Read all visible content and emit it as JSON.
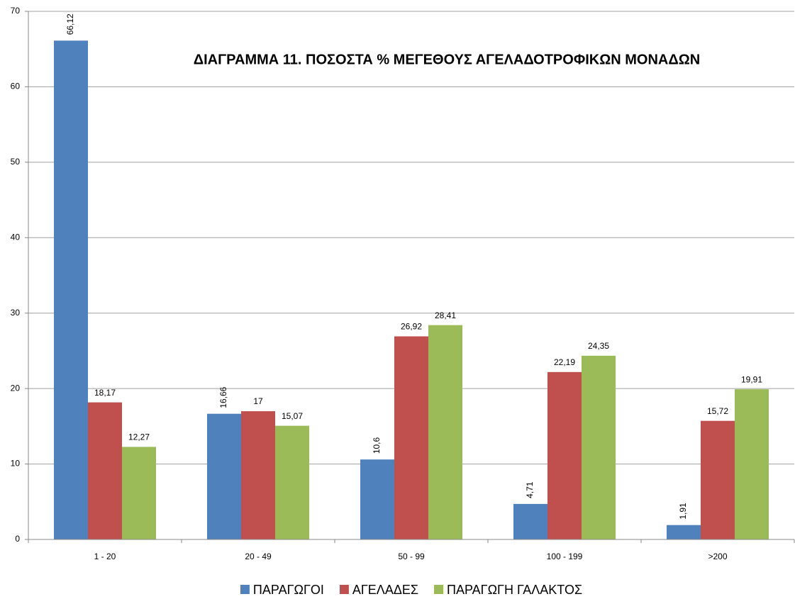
{
  "chart_data": {
    "type": "bar",
    "title": "ΔΙΑΓΡΑΜΜΑ 11. ΠΟΣΟΣΤΑ %  ΜΕΓΕΘΟΥΣ ΑΓΕΛΑΔΟΤΡΟΦΙΚΩΝ ΜΟΝΑΔΩΝ",
    "categories": [
      "1 - 20",
      "20 - 49",
      "50 - 99",
      "100 - 199",
      ">200"
    ],
    "series": [
      {
        "name": "ΠΑΡΑΓΩΓΟΙ",
        "color": "#4f81bd",
        "values": [
          66.12,
          16.66,
          10.6,
          4.71,
          1.91
        ],
        "value_labels": [
          "66,12",
          "16,66",
          "10,6",
          "4,71",
          "1,91"
        ]
      },
      {
        "name": "ΑΓΕΛΑΔΕΣ",
        "color": "#c0504d",
        "values": [
          18.17,
          17,
          26.92,
          22.19,
          15.72
        ],
        "value_labels": [
          "18,17",
          "17",
          "26,92",
          "22,19",
          "15,72"
        ]
      },
      {
        "name": "ΠΑΡΑΓΩΓΗ ΓΑΛΑΚΤΟΣ",
        "color": "#9bbb59",
        "values": [
          12.27,
          15.07,
          28.41,
          24.35,
          19.91
        ],
        "value_labels": [
          "12,27",
          "15,07",
          "28,41",
          "24,35",
          "19,91"
        ]
      }
    ],
    "ylim": [
      0,
      70
    ],
    "yticks": [
      0,
      10,
      20,
      30,
      40,
      50,
      60,
      70
    ],
    "grid": true,
    "legend": "bottom"
  }
}
